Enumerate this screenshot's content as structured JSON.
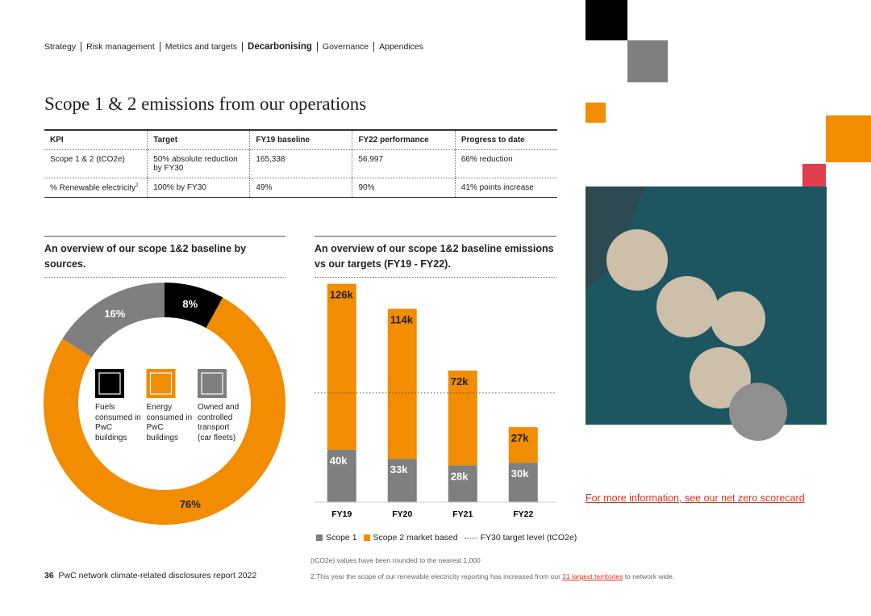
{
  "nav": {
    "items": [
      "Strategy",
      "Risk management",
      "Metrics and targets",
      "Decarbonising",
      "Governance",
      "Appendices"
    ],
    "active": 3
  },
  "title": "Scope 1 & 2 emissions from our operations",
  "table": {
    "header": [
      "KPI",
      "Target",
      "FY19 baseline",
      "FY22 performance",
      "Progress to date"
    ],
    "rows": [
      [
        "Scope 1 & 2 (tCO2e)",
        "50% absolute reduction by FY30",
        "165,338",
        "56,997",
        "66% reduction"
      ],
      [
        "% Renewable electricity",
        "100% by FY30",
        "49%",
        "90%",
        "41% points increase"
      ]
    ],
    "note_mark": "2",
    "note_row": 1
  },
  "chart_data": [
    {
      "type": "pie",
      "donut": true,
      "title": "An overview of our scope 1&2 baseline by sources.",
      "categories": [
        "Fuels consumed in PwC buildings",
        "Energy consumed in PwC buildings",
        "Owned and controlled transport (car fleets)"
      ],
      "values": [
        8,
        76,
        16
      ],
      "value_labels": [
        "8%",
        "76%",
        "16%"
      ],
      "colors": [
        "#000000",
        "#f28c00",
        "#7f7f7f"
      ]
    },
    {
      "type": "stacked_bar",
      "title": "An overview of our scope 1&2 baseline emissions vs our targets (FY19 - FY22).",
      "categories": [
        "FY19",
        "FY20",
        "FY21",
        "FY22"
      ],
      "series": [
        {
          "name": "Scope 1",
          "color": "#7f7f7f",
          "values": [
            40000,
            33000,
            28000,
            30000
          ],
          "value_labels": [
            "40k",
            "33k",
            "28k",
            "30k"
          ]
        },
        {
          "name": "Scope 2 market based",
          "color": "#f28c00",
          "values": [
            126000,
            114000,
            72000,
            27000
          ],
          "value_labels": [
            "126k",
            "114k",
            "72k",
            "27k"
          ]
        }
      ],
      "target": {
        "name": "FY30 target level (tCO2e)",
        "value": 83000
      },
      "ylim": [
        0,
        170000
      ]
    }
  ],
  "sidebar_link": "For more information, see our net zero scorecard",
  "footnotes": {
    "rounding": "(tCO2e) values have been rounded to the nearest 1,000",
    "scope": {
      "before": "2.This year the scope of our renewable electricity reporting has increased from our ",
      "link": "21 largest territories",
      "after": " to network wide."
    }
  },
  "footer": {
    "page": "36",
    "text": "PwC network climate-related disclosures report 2022"
  }
}
